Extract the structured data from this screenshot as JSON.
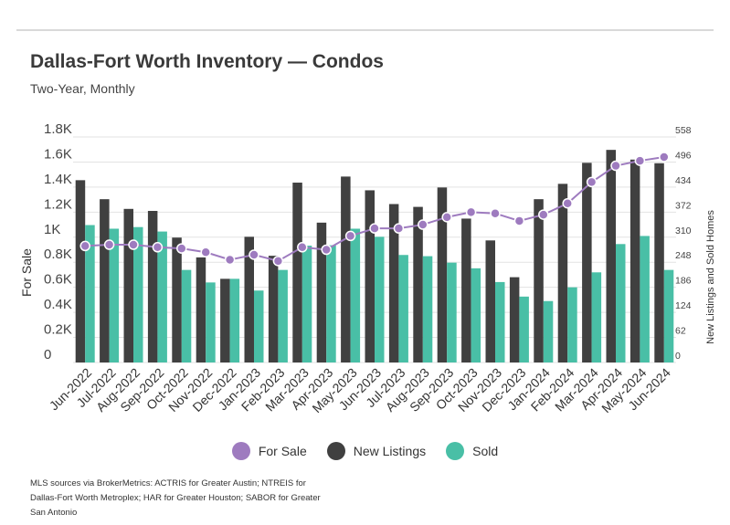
{
  "header": {
    "title": "Dallas-Fort Worth Inventory — Condos",
    "subtitle": "Two-Year, Monthly"
  },
  "footnote": "MLS sources via BrokerMetrics: ACTRIS for Greater Austin; NTREIS for Dallas-Fort Worth Metroplex; HAR for Greater Houston; SABOR for Greater San Antonio",
  "colors": {
    "for_sale": "#9e7bbf",
    "new_listings": "#404040",
    "sold": "#49bfa6",
    "grid": "#e3e3e3"
  },
  "chart_data": {
    "type": "bar",
    "title": "Dallas-Fort Worth Inventory — Condos",
    "subtitle": "Two-Year, Monthly",
    "ylabel": "For Sale",
    "y2label": "New Listings and Sold Homes",
    "ylim": [
      0,
      1800
    ],
    "y2lim": [
      0,
      558
    ],
    "yticks": [
      "0",
      "0.2K",
      "0.4K",
      "0.6K",
      "0.8K",
      "1K",
      "1.2K",
      "1.4K",
      "1.6K",
      "1.8K"
    ],
    "y2ticks": [
      "0",
      "62",
      "124",
      "186",
      "248",
      "310",
      "372",
      "434",
      "496",
      "558"
    ],
    "grid": true,
    "legend_position": "bottom",
    "categories": [
      "Jun-2022",
      "Jul-2022",
      "Aug-2022",
      "Sep-2022",
      "Oct-2022",
      "Nov-2022",
      "Dec-2022",
      "Jan-2023",
      "Feb-2023",
      "Mar-2023",
      "Apr-2023",
      "May-2023",
      "Jun-2023",
      "Jul-2023",
      "Aug-2023",
      "Sep-2023",
      "Oct-2023",
      "Nov-2023",
      "Dec-2023",
      "Jan-2024",
      "Feb-2024",
      "Mar-2024",
      "Apr-2024",
      "May-2024",
      "Jun-2024"
    ],
    "series": [
      {
        "name": "For Sale",
        "type": "line",
        "axis": "left",
        "values": [
          930,
          940,
          940,
          920,
          910,
          880,
          820,
          860,
          810,
          920,
          900,
          1010,
          1070,
          1070,
          1100,
          1160,
          1200,
          1190,
          1130,
          1180,
          1270,
          1440,
          1570,
          1610,
          1640
        ]
      },
      {
        "name": "New Listings",
        "type": "bar",
        "axis": "right",
        "values": [
          451,
          404,
          380,
          375,
          309,
          260,
          207,
          311,
          264,
          445,
          346,
          460,
          426,
          392,
          385,
          433,
          356,
          302,
          211,
          404,
          442,
          494,
          526,
          502,
          493
        ]
      },
      {
        "name": "Sold",
        "type": "bar",
        "axis": "right",
        "values": [
          340,
          331,
          335,
          324,
          229,
          198,
          207,
          178,
          229,
          289,
          290,
          331,
          311,
          266,
          263,
          247,
          233,
          199,
          163,
          152,
          186,
          223,
          293,
          313,
          229
        ]
      }
    ]
  }
}
